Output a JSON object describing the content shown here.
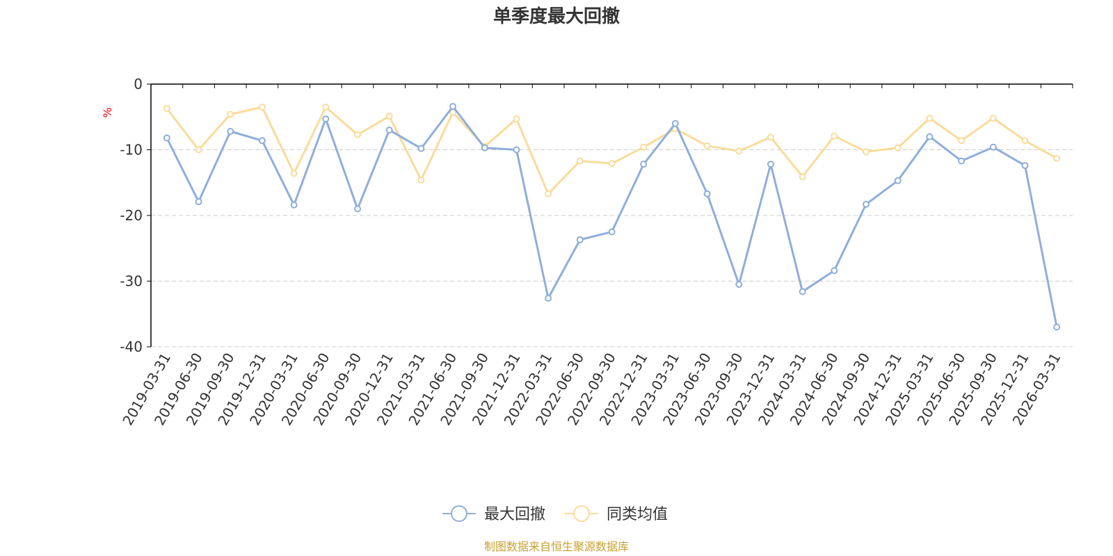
{
  "chart_data": {
    "type": "line",
    "title": "单季度最大回撤",
    "ylabel": "%",
    "ylim": [
      -40,
      0
    ],
    "yticks": [
      0,
      -10,
      -20,
      -30,
      -40
    ],
    "categories": [
      "2019-03-31",
      "2019-06-30",
      "2019-09-30",
      "2019-12-31",
      "2020-03-31",
      "2020-06-30",
      "2020-09-30",
      "2020-12-31",
      "2021-03-31",
      "2021-06-30",
      "2021-09-30",
      "2021-12-31",
      "2022-03-31",
      "2022-06-30",
      "2022-09-30",
      "2022-12-31",
      "2023-03-31",
      "2023-06-30",
      "2023-09-30",
      "2023-12-31",
      "2024-03-31",
      "2024-06-30",
      "2024-09-30",
      "2024-12-31",
      "2025-03-31",
      "2025-06-30",
      "2025-09-30",
      "2025-12-31",
      "2026-03-31"
    ],
    "series": [
      {
        "name": "最大回撤",
        "color": "#8eaedb",
        "values": [
          -8.2,
          -17.9,
          -7.2,
          -8.6,
          -18.4,
          -5.3,
          -19.0,
          -7.0,
          -9.8,
          -3.4,
          -9.7,
          -10.0,
          -32.6,
          -23.7,
          -22.5,
          -12.2,
          -6.0,
          -16.7,
          -30.5,
          -12.2,
          -31.6,
          -28.4,
          -18.3,
          -14.7,
          -8.0,
          -11.7,
          -9.6,
          -12.4,
          -37.0
        ]
      },
      {
        "name": "同类均值",
        "color": "#fadb9a",
        "values": [
          -3.7,
          -10.0,
          -4.6,
          -3.5,
          -13.6,
          -3.5,
          -7.7,
          -4.9,
          -14.6,
          -4.3,
          -9.5,
          -5.3,
          -16.7,
          -11.7,
          -12.1,
          -9.6,
          -6.8,
          -9.4,
          -10.2,
          -8.1,
          -14.1,
          -7.9,
          -10.3,
          -9.7,
          -5.2,
          -8.6,
          -5.2,
          -8.6,
          -11.3
        ]
      }
    ],
    "grid": true,
    "grid_style": "dashed",
    "legend": "bottom-center"
  },
  "source": "制图数据来自恒生聚源数据库",
  "colors": {
    "title": "#333333",
    "axis": "#000000",
    "grid": "#cccccc",
    "unit": "#ff0000",
    "source": "#c8a032",
    "background": "#ffffff"
  }
}
